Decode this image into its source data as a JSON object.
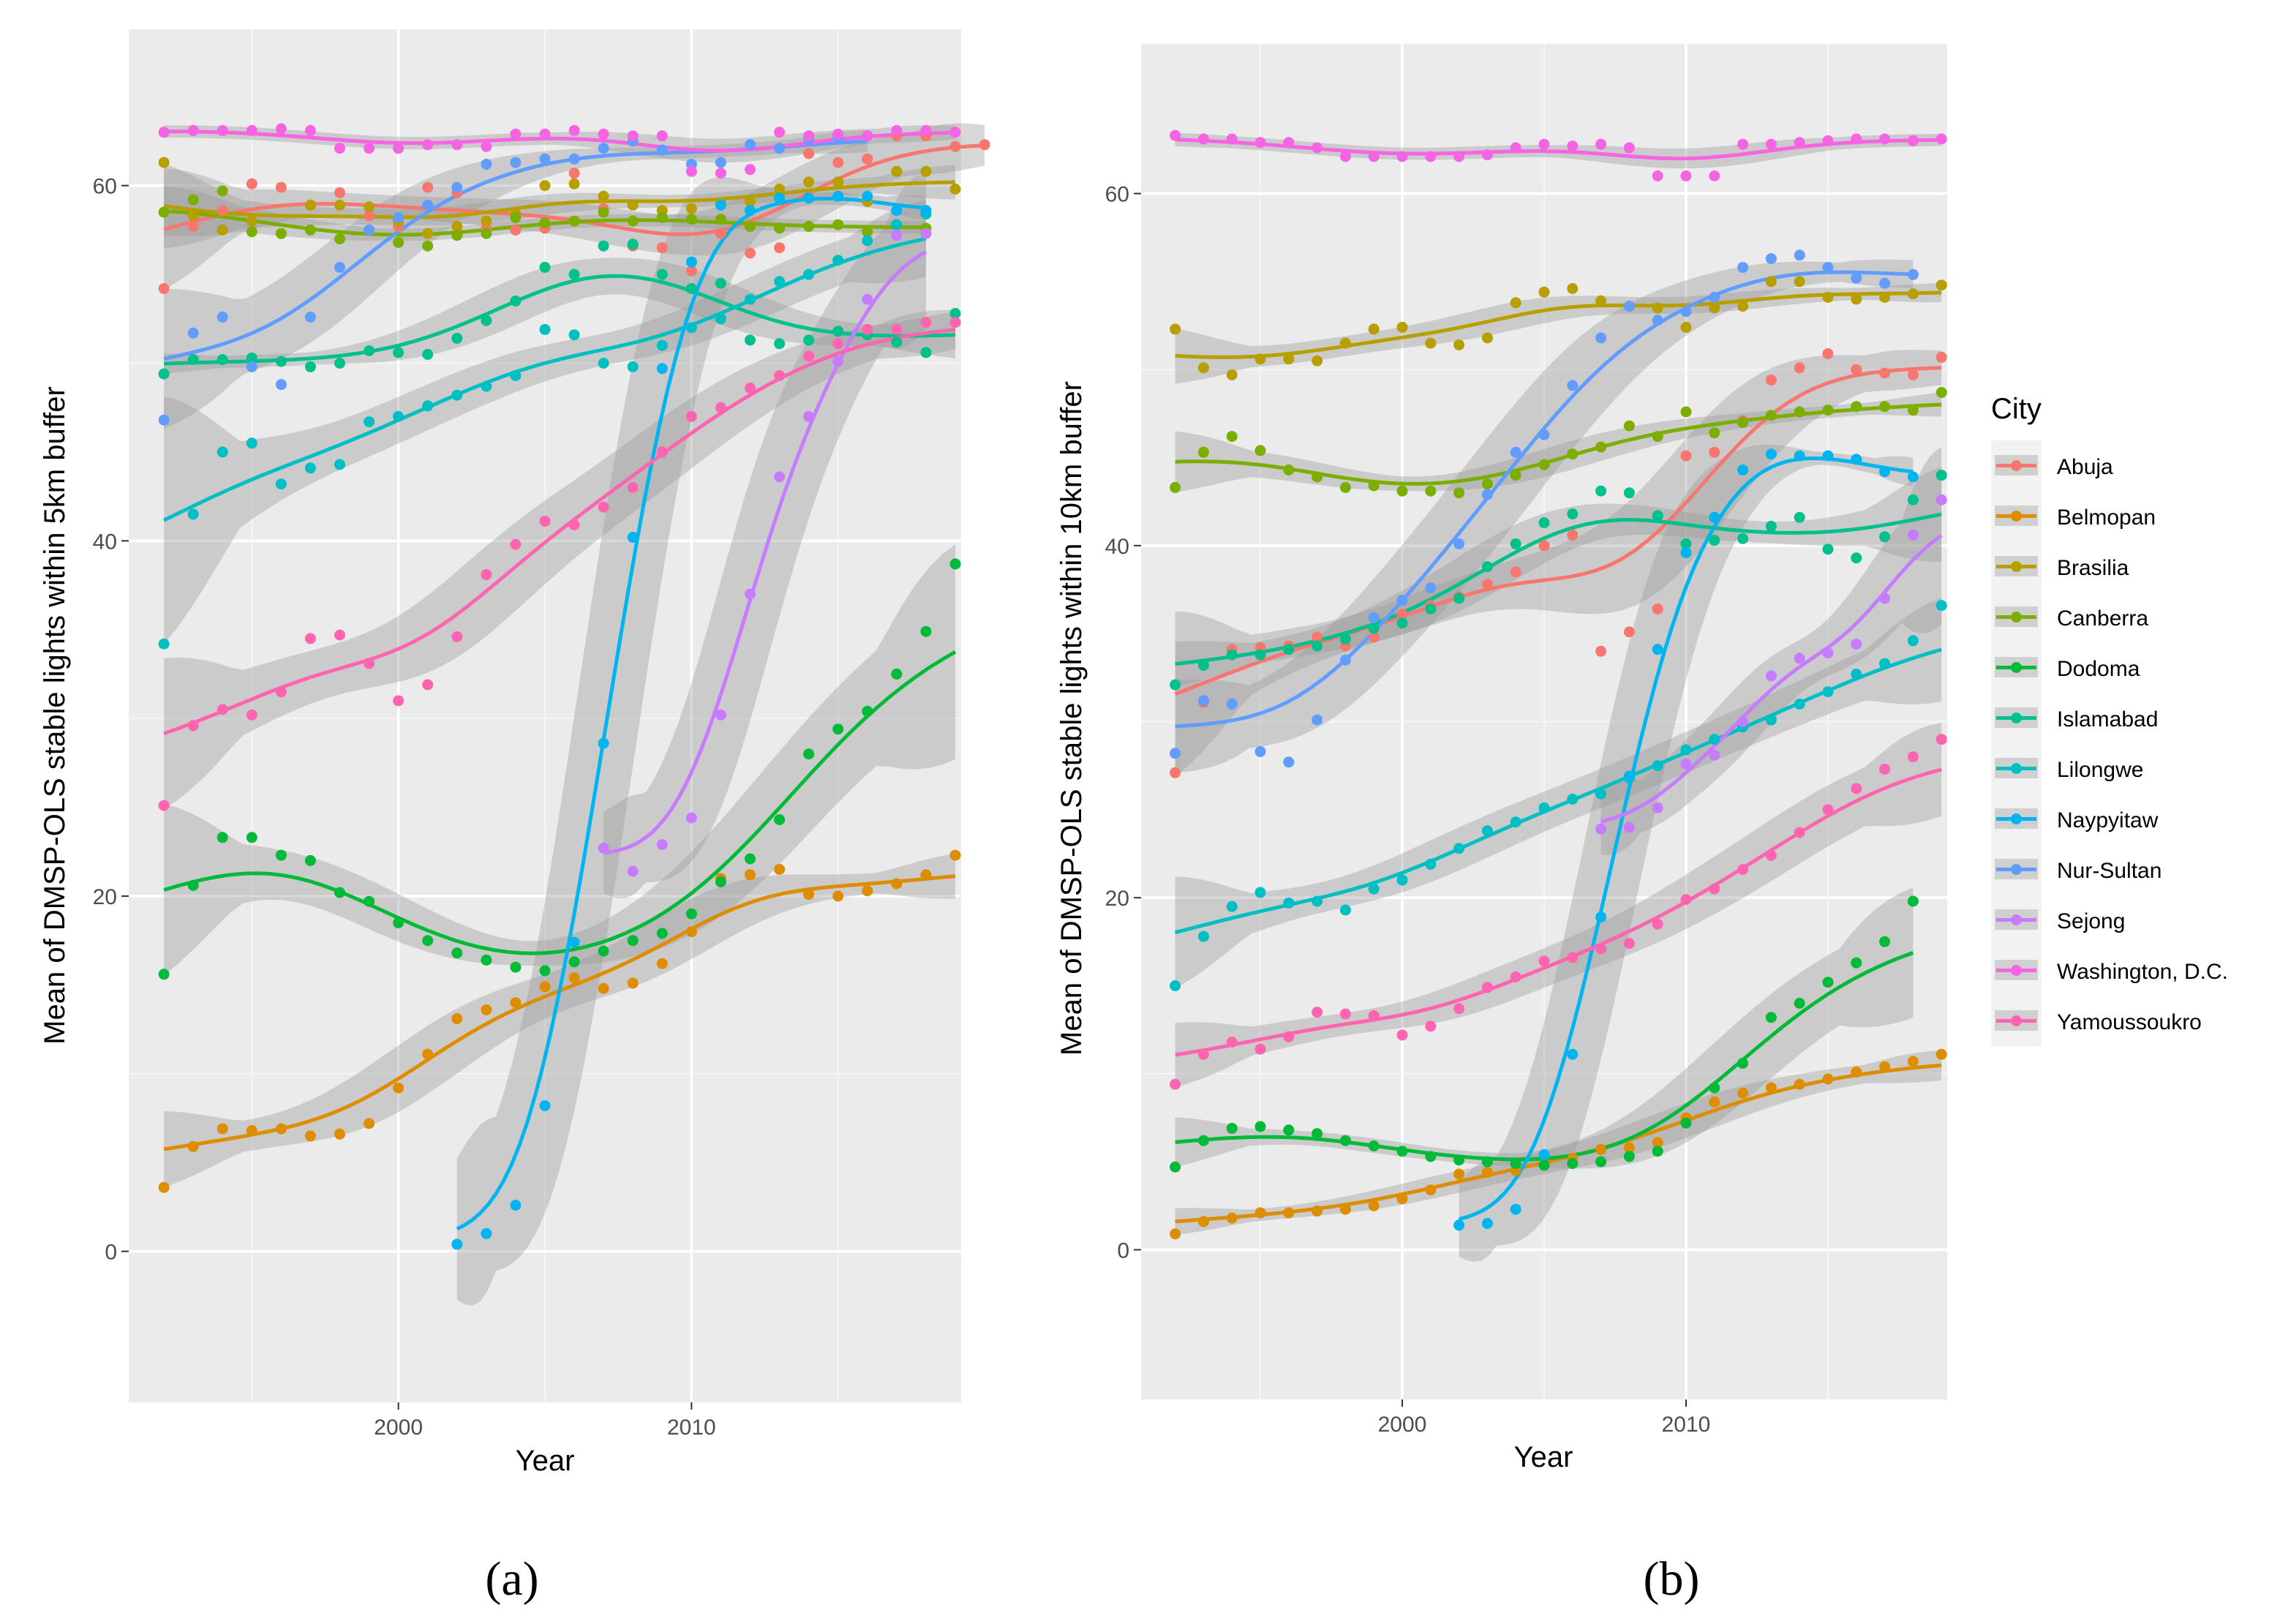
{
  "legend": {
    "title": "City",
    "cities": [
      "Abuja",
      "Belmopan",
      "Brasilia",
      "Canberra",
      "Dodoma",
      "Islamabad",
      "Lilongwe",
      "Naypyitaw",
      "Nur-Sultan",
      "Sejong",
      "Washington, D.C.",
      "Yamoussoukro"
    ],
    "colors": [
      "#F8766D",
      "#DE8C00",
      "#B79F00",
      "#7CAE00",
      "#00BA38",
      "#00C08B",
      "#00BFC4",
      "#00B4F0",
      "#619CFF",
      "#C77CFF",
      "#F564E3",
      "#FF64B0"
    ]
  },
  "chart_data": [
    {
      "type": "scatter",
      "panel_label": "(a)",
      "xlabel": "Year",
      "ylabel": "Mean of DMSP-OLS stable lights within 5km buffer",
      "xlim": [
        1990.8,
        2019.2
      ],
      "ylim": [
        -8.5,
        68.8
      ],
      "xticks": [
        2000,
        2010
      ],
      "yticks": [
        0,
        20,
        40,
        60
      ],
      "series": [
        {
          "name": "Abuja",
          "start": 1992,
          "values": [
            54.2,
            57.7,
            58.6,
            60.1,
            59.9,
            58.9,
            59.6,
            58.3,
            57.7,
            59.9,
            59.6,
            57.6,
            57.5,
            57.6,
            60.7,
            58.7,
            56.6,
            56.5,
            55.2,
            57.3,
            56.2,
            56.5,
            61.8,
            61.3,
            61.5,
            62.8,
            62.8,
            62.2,
            62.3
          ]
        },
        {
          "name": "Belmopan",
          "start": 1992,
          "values": [
            3.6,
            5.9,
            6.9,
            6.8,
            6.9,
            6.5,
            6.6,
            7.2,
            9.2,
            11.1,
            13.1,
            13.6,
            14.0,
            14.9,
            15.4,
            14.8,
            15.1,
            16.2,
            18.0,
            21.0,
            21.2,
            21.5,
            20.1,
            20.0,
            20.3,
            20.7,
            21.2,
            22.3
          ]
        },
        {
          "name": "Brasilia",
          "start": 1992,
          "values": [
            61.3,
            58.3,
            57.5,
            58.0,
            57.3,
            58.9,
            58.9,
            58.8,
            58.0,
            57.3,
            57.7,
            58.0,
            58.4,
            60.0,
            60.1,
            59.4,
            58.9,
            58.6,
            58.7,
            59.0,
            59.1,
            59.8,
            60.2,
            60.2,
            59.1,
            60.8,
            60.8,
            59.8
          ]
        },
        {
          "name": "Canberra",
          "start": 1992,
          "values": [
            58.5,
            59.2,
            59.7,
            57.4,
            57.3,
            57.5,
            57.0,
            57.5,
            56.8,
            56.6,
            57.2,
            57.3,
            58.2,
            57.9,
            58.0,
            58.5,
            58.0,
            58.2,
            58.1,
            58.1,
            57.7,
            57.6,
            57.7,
            57.8,
            57.4,
            57.8,
            57.6
          ]
        },
        {
          "name": "Dodoma",
          "start": 1992,
          "values": [
            15.6,
            20.6,
            23.3,
            23.3,
            22.3,
            22.0,
            20.2,
            19.7,
            18.5,
            17.5,
            16.8,
            16.4,
            16.0,
            15.8,
            16.3,
            16.9,
            17.5,
            17.9,
            19.0,
            20.8,
            22.1,
            24.3,
            28.0,
            29.4,
            30.4,
            32.5,
            34.9,
            38.7
          ]
        },
        {
          "name": "Islamabad",
          "start": 1992,
          "values": [
            49.4,
            50.2,
            50.2,
            50.3,
            50.1,
            49.8,
            50.0,
            50.7,
            50.6,
            50.5,
            51.4,
            52.4,
            53.5,
            55.4,
            55.0,
            56.6,
            56.7,
            55.0,
            54.2,
            54.5,
            51.3,
            51.1,
            51.3,
            51.8,
            51.6,
            51.2,
            50.6,
            52.8
          ]
        },
        {
          "name": "Lilongwe",
          "start": 1992,
          "values": [
            34.2,
            41.5,
            45.0,
            45.5,
            43.2,
            44.1,
            44.3,
            46.7,
            47.0,
            47.6,
            48.2,
            48.7,
            49.3,
            51.9,
            51.6,
            50.0,
            49.8,
            51.0,
            52.0,
            52.5,
            53.6,
            54.6,
            55.0,
            55.8,
            56.9,
            57.8,
            58.4
          ]
        },
        {
          "name": "Naypyitaw",
          "start": 2002,
          "values": [
            0.4,
            1.0,
            2.6,
            8.2,
            17.4,
            28.6,
            40.2,
            49.7,
            55.7,
            58.9,
            58.6,
            59.3,
            59.3,
            59.4,
            59.4,
            58.6,
            58.6
          ]
        },
        {
          "name": "Nur-Sultan",
          "start": 1992,
          "values": [
            46.8,
            51.7,
            52.6,
            49.8,
            48.8,
            52.6,
            55.4,
            57.5,
            58.2,
            58.9,
            59.9,
            61.2,
            61.3,
            61.5,
            61.5,
            62.1,
            62.5,
            62.0,
            61.2,
            61.3,
            62.3,
            62.1,
            62.6,
            62.7,
            62.8
          ]
        },
        {
          "name": "Sejong",
          "start": 2007,
          "values": [
            22.7,
            21.4,
            22.9,
            24.4,
            30.2,
            37.0,
            43.6,
            47.0,
            50.1,
            53.6,
            57.2,
            57.3
          ]
        },
        {
          "name": "Washington, D.C.",
          "start": 1992,
          "values": [
            63.0,
            63.1,
            63.1,
            63.1,
            63.2,
            63.1,
            62.1,
            62.1,
            62.1,
            62.3,
            62.3,
            62.2,
            62.9,
            62.9,
            63.1,
            62.9,
            62.8,
            62.8,
            60.8,
            60.7,
            60.9,
            63.0,
            62.8,
            62.9,
            62.8,
            63.1,
            63.1,
            63.0
          ]
        },
        {
          "name": "Yamoussoukro",
          "start": 1992,
          "values": [
            25.1,
            29.6,
            30.5,
            30.2,
            31.5,
            34.5,
            34.7,
            33.1,
            31.0,
            31.9,
            34.6,
            38.1,
            39.8,
            41.1,
            40.9,
            41.9,
            43.0,
            45.0,
            47.0,
            47.5,
            48.6,
            49.3,
            50.4,
            51.1,
            51.9,
            51.9,
            52.3,
            52.3
          ]
        }
      ]
    },
    {
      "type": "scatter",
      "panel_label": "(b)",
      "xlabel": "Year",
      "ylabel": "Mean of DMSP-OLS stable lights within 10km buffer",
      "xlim": [
        1990.8,
        2019.2
      ],
      "ylim": [
        -8.5,
        68.5
      ],
      "xticks": [
        2000,
        2010
      ],
      "yticks": [
        0,
        20,
        40,
        60
      ],
      "series": [
        {
          "name": "Abuja",
          "start": 1992,
          "values": [
            27.1,
            31.1,
            34.1,
            34.2,
            34.3,
            34.8,
            34.3,
            34.8,
            36.1,
            36.6,
            37.1,
            37.8,
            38.5,
            40.0,
            40.6,
            34.0,
            35.1,
            36.4,
            45.1,
            45.3,
            47.1,
            49.4,
            50.1,
            50.9,
            50.0,
            49.8,
            49.7,
            50.7
          ]
        },
        {
          "name": "Belmopan",
          "start": 1992,
          "values": [
            0.9,
            1.6,
            1.8,
            2.1,
            2.1,
            2.2,
            2.3,
            2.5,
            2.9,
            3.4,
            4.3,
            4.4,
            4.5,
            4.8,
            5.2,
            5.7,
            5.8,
            6.1,
            7.5,
            8.4,
            8.9,
            9.2,
            9.4,
            9.7,
            10.1,
            10.4,
            10.7,
            11.1
          ]
        },
        {
          "name": "Brasilia",
          "start": 1992,
          "values": [
            52.3,
            50.1,
            49.7,
            50.6,
            50.6,
            50.5,
            51.5,
            52.3,
            52.4,
            51.5,
            51.4,
            51.8,
            53.8,
            54.4,
            54.6,
            53.9,
            53.6,
            53.5,
            52.4,
            53.5,
            53.6,
            55.0,
            55.0,
            54.1,
            54.0,
            54.1,
            54.3,
            54.8
          ]
        },
        {
          "name": "Canberra",
          "start": 1992,
          "values": [
            43.3,
            45.3,
            46.2,
            45.4,
            44.3,
            43.9,
            43.3,
            43.4,
            43.1,
            43.1,
            43.0,
            43.5,
            44.0,
            44.6,
            45.2,
            45.6,
            46.8,
            46.2,
            47.6,
            46.4,
            47.0,
            47.4,
            47.6,
            47.7,
            47.9,
            47.9,
            47.7,
            48.7
          ]
        },
        {
          "name": "Dodoma",
          "start": 1992,
          "values": [
            4.7,
            6.2,
            6.9,
            7.0,
            6.8,
            6.6,
            6.2,
            5.9,
            5.6,
            5.3,
            5.1,
            5.0,
            4.9,
            4.8,
            4.9,
            5.0,
            5.3,
            5.6,
            7.2,
            9.2,
            10.6,
            13.2,
            14.0,
            15.2,
            16.3,
            17.5,
            19.8
          ]
        },
        {
          "name": "Islamabad",
          "start": 1992,
          "values": [
            32.1,
            33.2,
            33.8,
            33.8,
            34.1,
            34.3,
            34.7,
            35.3,
            35.6,
            36.4,
            37.0,
            38.8,
            40.1,
            41.3,
            41.8,
            43.1,
            43.0,
            41.7,
            40.1,
            40.3,
            40.4,
            41.1,
            41.6,
            39.8,
            39.3,
            40.5,
            42.6,
            44.0
          ]
        },
        {
          "name": "Lilongwe",
          "start": 1992,
          "values": [
            15.0,
            17.8,
            19.5,
            20.3,
            19.7,
            19.8,
            19.3,
            20.5,
            21.0,
            21.9,
            22.8,
            23.8,
            24.3,
            25.1,
            25.6,
            25.9,
            26.8,
            27.5,
            28.4,
            29.0,
            29.7,
            30.1,
            31.0,
            31.7,
            32.7,
            33.3,
            34.6,
            36.6
          ]
        },
        {
          "name": "Naypyitaw",
          "start": 2002,
          "values": [
            1.4,
            1.5,
            2.3,
            5.4,
            11.1,
            18.9,
            26.9,
            34.1,
            39.6,
            41.6,
            44.3,
            45.2,
            45.1,
            45.1,
            44.9,
            44.2,
            43.9
          ]
        },
        {
          "name": "Nur-Sultan",
          "start": 1992,
          "values": [
            28.2,
            31.2,
            31.0,
            28.3,
            27.7,
            30.1,
            33.5,
            35.9,
            36.9,
            37.6,
            40.1,
            42.9,
            45.3,
            46.3,
            49.1,
            51.8,
            53.6,
            52.8,
            53.3,
            54.1,
            55.8,
            56.3,
            56.5,
            55.8,
            55.2,
            54.9,
            55.4
          ]
        },
        {
          "name": "Sejong",
          "start": 2007,
          "values": [
            23.9,
            24.0,
            25.1,
            27.6,
            28.1,
            30.0,
            32.6,
            33.6,
            33.9,
            34.4,
            37.0,
            40.6,
            42.6
          ]
        },
        {
          "name": "Washington, D.C.",
          "start": 1992,
          "values": [
            63.3,
            63.1,
            63.1,
            62.9,
            62.9,
            62.6,
            62.1,
            62.1,
            62.1,
            62.1,
            62.1,
            62.2,
            62.6,
            62.8,
            62.7,
            62.8,
            62.6,
            61.0,
            61.0,
            61.0,
            62.8,
            62.8,
            62.9,
            63.0,
            63.1,
            63.1,
            63.0,
            63.1
          ]
        },
        {
          "name": "Yamoussoukro",
          "start": 1992,
          "values": [
            9.4,
            11.1,
            11.8,
            11.4,
            12.1,
            13.5,
            13.4,
            13.3,
            12.2,
            12.7,
            13.7,
            14.9,
            15.5,
            16.4,
            16.6,
            17.1,
            17.4,
            18.5,
            19.9,
            20.5,
            21.6,
            22.4,
            23.7,
            25.0,
            26.2,
            27.3,
            28.0,
            29.0
          ]
        }
      ]
    }
  ]
}
